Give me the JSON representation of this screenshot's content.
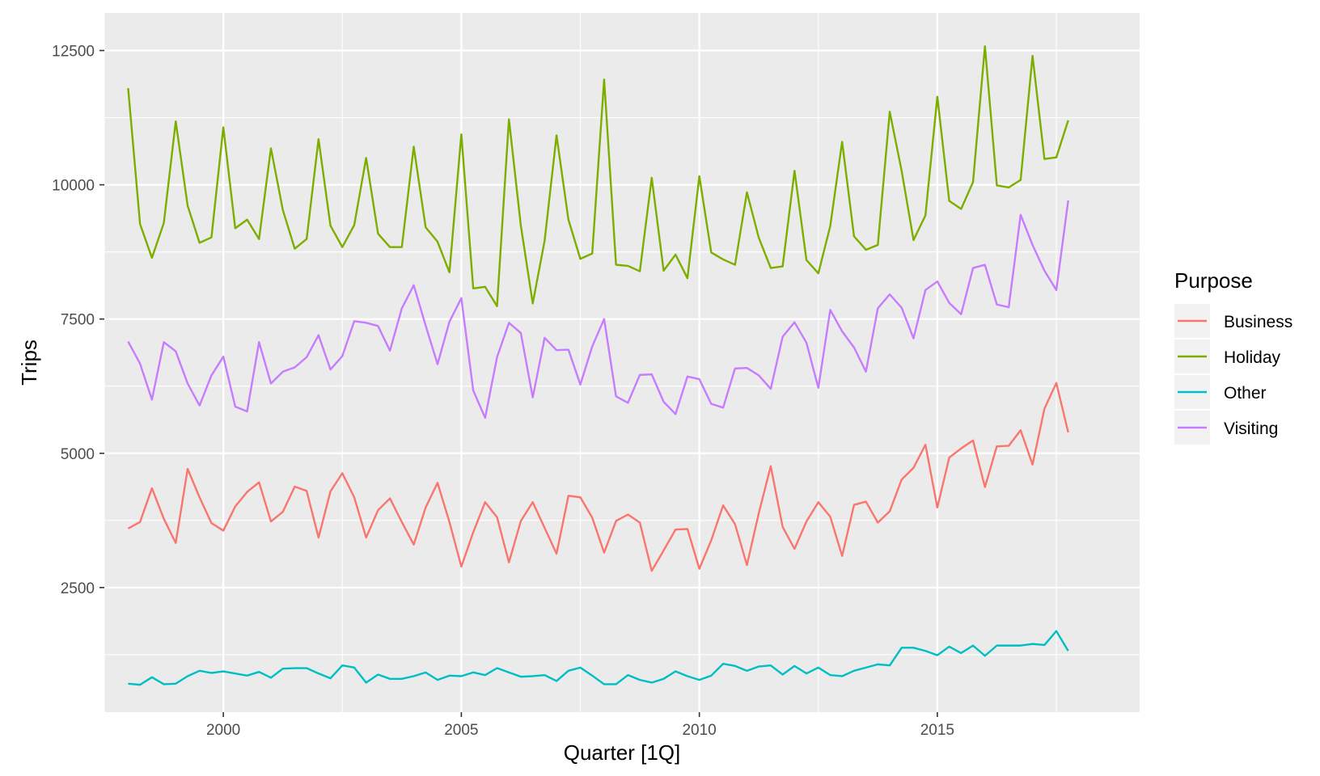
{
  "chart_data": {
    "type": "line",
    "title": "",
    "xlabel": "Quarter [1Q]",
    "ylabel": "Trips",
    "x_ticks": [
      2000,
      2005,
      2010,
      2015
    ],
    "y_ticks": [
      2500,
      5000,
      7500,
      10000,
      12500
    ],
    "xlim": [
      1997.5,
      2019.25
    ],
    "ylim": [
      180,
      13200
    ],
    "grid": true,
    "legend": {
      "title": "Purpose",
      "position": "right"
    },
    "x_start": 1998.0,
    "x_step": 0.25,
    "series": [
      {
        "name": "Business",
        "color": "#F8766D",
        "values": [
          3600,
          3720,
          4350,
          3780,
          3330,
          4710,
          4180,
          3700,
          3560,
          4010,
          4280,
          4460,
          3730,
          3910,
          4380,
          4300,
          3430,
          4290,
          4630,
          4180,
          3430,
          3940,
          4160,
          3720,
          3300,
          3990,
          4450,
          3720,
          2890,
          3530,
          4090,
          3810,
          2970,
          3740,
          4090,
          3610,
          3130,
          4210,
          4180,
          3800,
          3150,
          3740,
          3860,
          3710,
          2810,
          3190,
          3580,
          3590,
          2850,
          3380,
          4030,
          3680,
          2920,
          3890,
          4760,
          3630,
          3220,
          3730,
          4090,
          3820,
          3090,
          4040,
          4100,
          3710,
          3920,
          4510,
          4730,
          5160,
          3990,
          4920,
          5090,
          5240,
          4370,
          5130,
          5140,
          5430,
          4790,
          5830,
          6310,
          5390
        ]
      },
      {
        "name": "Holiday",
        "color": "#7CAE00",
        "values": [
          11800,
          9270,
          8640,
          9290,
          11180,
          9610,
          8920,
          9020,
          11070,
          9190,
          9350,
          8990,
          10680,
          9530,
          8810,
          8990,
          10850,
          9240,
          8840,
          9250,
          10500,
          9090,
          8840,
          8840,
          10710,
          9210,
          8940,
          8370,
          10940,
          8070,
          8100,
          7740,
          11220,
          9240,
          7790,
          8960,
          10920,
          9350,
          8620,
          8720,
          11960,
          8510,
          8490,
          8390,
          10130,
          8400,
          8700,
          8260,
          10160,
          8740,
          8610,
          8510,
          9860,
          9010,
          8450,
          8480,
          10260,
          8600,
          8350,
          9230,
          10800,
          9040,
          8790,
          8880,
          11360,
          10260,
          8970,
          9430,
          11640,
          9700,
          9550,
          10050,
          12580,
          9990,
          9950,
          10090,
          12400,
          10480,
          10510,
          11200
        ]
      },
      {
        "name": "Other",
        "color": "#00BFC4",
        "values": [
          710,
          690,
          830,
          700,
          710,
          850,
          950,
          910,
          940,
          900,
          860,
          930,
          820,
          990,
          1000,
          1000,
          900,
          810,
          1050,
          1010,
          730,
          880,
          800,
          800,
          850,
          920,
          780,
          860,
          850,
          920,
          870,
          1000,
          920,
          840,
          850,
          870,
          760,
          950,
          1010,
          860,
          700,
          700,
          870,
          780,
          730,
          800,
          940,
          850,
          780,
          860,
          1080,
          1040,
          950,
          1030,
          1050,
          880,
          1040,
          900,
          1010,
          870,
          850,
          950,
          1010,
          1070,
          1050,
          1380,
          1380,
          1320,
          1240,
          1400,
          1280,
          1420,
          1230,
          1420,
          1420,
          1420,
          1450,
          1430,
          1690,
          1320
        ]
      },
      {
        "name": "Visiting",
        "color": "#C77CFF",
        "values": [
          7080,
          6670,
          6000,
          7070,
          6900,
          6300,
          5890,
          6450,
          6800,
          5870,
          5780,
          7070,
          6300,
          6520,
          6600,
          6790,
          7200,
          6560,
          6810,
          7460,
          7430,
          7370,
          6910,
          7700,
          8130,
          7380,
          6660,
          7450,
          7890,
          6170,
          5660,
          6790,
          7430,
          7240,
          6040,
          7150,
          6920,
          6930,
          6280,
          6990,
          7500,
          6060,
          5940,
          6460,
          6470,
          5960,
          5730,
          6430,
          6380,
          5920,
          5850,
          6580,
          6590,
          6450,
          6200,
          7170,
          7440,
          7060,
          6220,
          7670,
          7270,
          6970,
          6520,
          7700,
          7960,
          7710,
          7140,
          8040,
          8200,
          7800,
          7590,
          8450,
          8510,
          7770,
          7720,
          9440,
          8880,
          8400,
          8040,
          9710
        ]
      }
    ]
  }
}
